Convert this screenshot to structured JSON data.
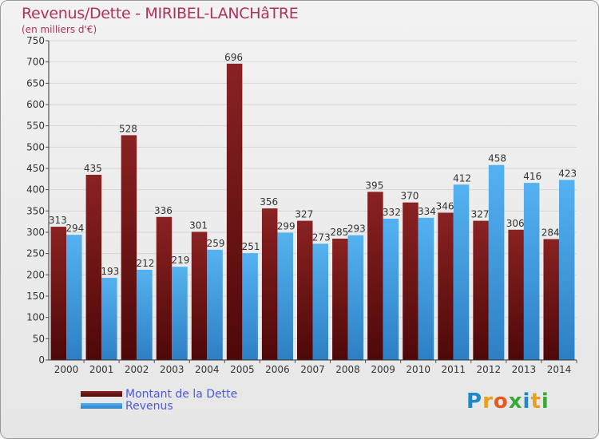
{
  "colors": {
    "debt": "#7a1616",
    "debt_dark": "#4e0808",
    "revenue": "#4aa8ea",
    "revenue_dark": "#2d7fc4",
    "title": "#b0325a",
    "legend_text": "#4a5be0"
  },
  "chart_data": {
    "type": "bar",
    "title": "Revenus/Dette - MIRIBEL-LANCHâTRE",
    "subtitle": "(en milliers d'€)",
    "xlabel": "",
    "ylabel": "",
    "ylim": [
      0,
      750
    ],
    "yticks": [
      0,
      50,
      100,
      150,
      200,
      250,
      300,
      350,
      400,
      450,
      500,
      550,
      600,
      650,
      700,
      750
    ],
    "grid": true,
    "legend_position": "bottom-left",
    "categories": [
      "2000",
      "2001",
      "2002",
      "2003",
      "2004",
      "2005",
      "2006",
      "2007",
      "2008",
      "2009",
      "2010",
      "2011",
      "2012",
      "2013",
      "2014"
    ],
    "series": [
      {
        "name": "Montant de la Dette",
        "values": [
          313,
          435,
          528,
          336,
          301,
          696,
          356,
          327,
          285,
          395,
          370,
          346,
          327,
          306,
          284
        ]
      },
      {
        "name": "Revenus",
        "values": [
          294,
          193,
          212,
          219,
          259,
          251,
          299,
          273,
          293,
          332,
          334,
          412,
          458,
          416,
          423
        ]
      }
    ]
  },
  "logo": {
    "text": "Proxiti",
    "letters": [
      "P",
      "r",
      "o",
      "x",
      "i",
      "t",
      "i"
    ],
    "letter_colors": [
      "#1e88c8",
      "#e6a11e",
      "#e65a1e",
      "#3aa83a",
      "#1e88c8",
      "#e6a11e",
      "#3aa83a"
    ]
  }
}
